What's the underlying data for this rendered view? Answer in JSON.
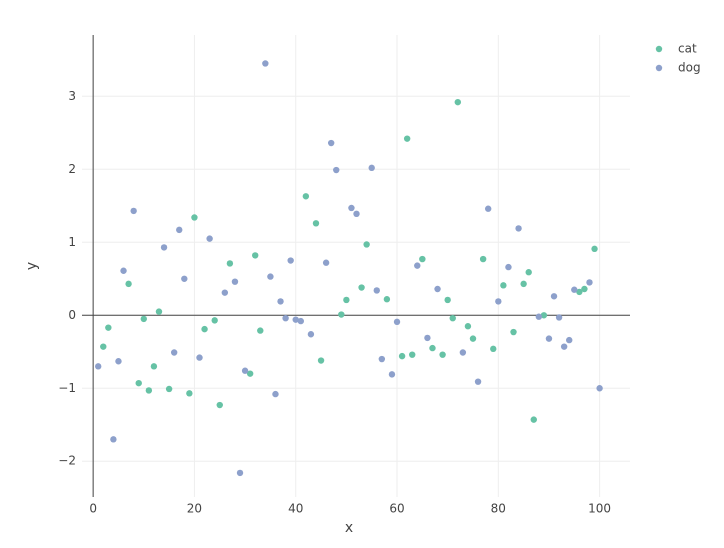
{
  "chart_data": {
    "type": "scatter",
    "x_label": "x",
    "y_label": "y",
    "xlim": [
      -2.2,
      106
    ],
    "ylim": [
      -2.49,
      3.84
    ],
    "xticks": [
      0,
      20,
      40,
      60,
      80,
      100
    ],
    "yticks": [
      {
        "value": -2,
        "label": "−2"
      },
      {
        "value": -1,
        "label": "−1"
      },
      0,
      1,
      2,
      3
    ],
    "grid": true,
    "zero_lines": true,
    "legend": "top-right",
    "series": [
      {
        "name": "cat",
        "color": "#66c2a5",
        "x": [
          2,
          3,
          7,
          9,
          10,
          11,
          12,
          13,
          15,
          19,
          20,
          22,
          24,
          25,
          27,
          31,
          32,
          33,
          42,
          44,
          45,
          49,
          50,
          53,
          54,
          58,
          61,
          62,
          63,
          65,
          67,
          69,
          70,
          71,
          72,
          74,
          75,
          77,
          79,
          81,
          83,
          85,
          86,
          87,
          89,
          96,
          97,
          99
        ],
        "values": [
          -0.43,
          -0.17,
          0.43,
          -0.93,
          -0.05,
          -1.03,
          -0.7,
          0.05,
          -1.01,
          -1.07,
          1.34,
          -0.19,
          -0.07,
          -1.23,
          0.71,
          -0.8,
          0.82,
          -0.21,
          1.63,
          1.26,
          -0.62,
          0.01,
          0.21,
          0.38,
          0.97,
          0.22,
          -0.56,
          2.42,
          -0.54,
          0.77,
          -0.45,
          -0.54,
          0.21,
          -0.04,
          2.92,
          -0.15,
          -0.32,
          0.77,
          -0.46,
          0.41,
          -0.23,
          0.43,
          0.59,
          -1.43,
          0.0,
          0.32,
          0.36,
          0.91
        ]
      },
      {
        "name": "dog",
        "color": "#8da0cb",
        "x": [
          1,
          4,
          5,
          6,
          8,
          14,
          16,
          17,
          18,
          21,
          23,
          26,
          28,
          29,
          30,
          34,
          35,
          36,
          37,
          38,
          39,
          40,
          41,
          43,
          46,
          47,
          48,
          51,
          52,
          55,
          56,
          57,
          59,
          60,
          64,
          66,
          68,
          73,
          76,
          78,
          80,
          82,
          84,
          88,
          90,
          91,
          92,
          93,
          94,
          95,
          98,
          100
        ],
        "values": [
          -0.7,
          -1.7,
          -0.63,
          0.61,
          1.43,
          0.93,
          -0.51,
          1.17,
          0.5,
          -0.58,
          1.05,
          0.31,
          0.46,
          -2.16,
          -0.76,
          3.45,
          0.53,
          -1.08,
          0.19,
          -0.04,
          0.75,
          -0.06,
          -0.08,
          -0.26,
          0.72,
          2.36,
          1.99,
          1.47,
          1.39,
          2.02,
          0.34,
          -0.6,
          -0.81,
          -0.09,
          0.68,
          -0.31,
          0.36,
          -0.51,
          -0.91,
          1.46,
          0.19,
          0.66,
          1.19,
          -0.02,
          -0.32,
          0.26,
          -0.03,
          -0.43,
          -0.34,
          0.35,
          0.45,
          -1.0
        ]
      }
    ]
  }
}
